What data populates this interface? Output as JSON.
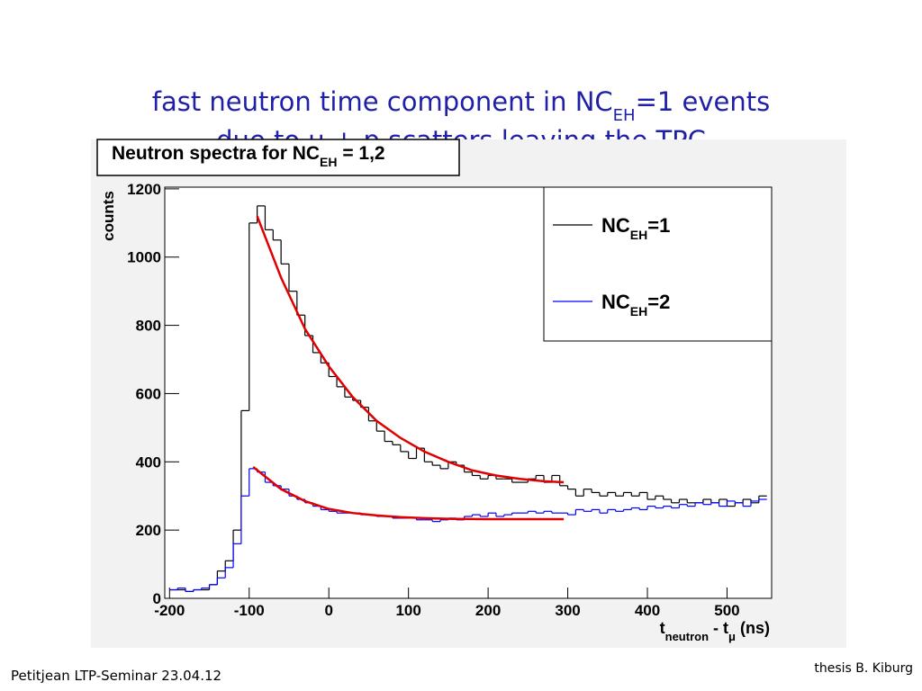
{
  "slide": {
    "headline": [
      "fast neutron time component in NC",
      "EH",
      "=1 events"
    ],
    "subline": "due to μ + p scatters leaving the TPC",
    "footer": "Petitjean LTP-Seminar 23.04.12",
    "credit": "thesis B. Kiburg"
  },
  "chart_data": {
    "type": "histogram",
    "title": [
      "Neutron spectra for NC",
      "EH",
      " = 1,2"
    ],
    "ylabel": "counts",
    "xlabel": [
      "t",
      "neutron",
      " - t",
      "μ",
      " (ns)"
    ],
    "bins": [
      -200,
      -190,
      -180,
      -170,
      -160,
      -150,
      -140,
      -130,
      -120,
      -110,
      -100,
      -90,
      -80,
      -70,
      -60,
      -50,
      -40,
      -30,
      -20,
      -10,
      0,
      10,
      20,
      30,
      40,
      50,
      60,
      70,
      80,
      90,
      100,
      110,
      120,
      130,
      140,
      150,
      160,
      170,
      180,
      190,
      200,
      210,
      220,
      230,
      240,
      250,
      260,
      270,
      280,
      290,
      300,
      310,
      320,
      330,
      340,
      350,
      360,
      370,
      380,
      390,
      400,
      410,
      420,
      430,
      440,
      450,
      460,
      470,
      480,
      490,
      500,
      510,
      520,
      530,
      540,
      550
    ],
    "series": [
      {
        "name": [
          "NC",
          "EH",
          "=1"
        ],
        "color": "#000000",
        "values": [
          25,
          25,
          20,
          25,
          25,
          40,
          80,
          110,
          200,
          550,
          1100,
          1150,
          1080,
          1050,
          980,
          900,
          830,
          770,
          720,
          690,
          650,
          620,
          590,
          580,
          560,
          520,
          490,
          460,
          450,
          430,
          410,
          440,
          400,
          390,
          380,
          400,
          390,
          370,
          360,
          350,
          360,
          350,
          350,
          340,
          340,
          350,
          360,
          340,
          360,
          330,
          320,
          300,
          320,
          310,
          300,
          310,
          300,
          310,
          300,
          310,
          290,
          300,
          290,
          280,
          290,
          280,
          280,
          290,
          280,
          290,
          270,
          280,
          290,
          280,
          300
        ]
      },
      {
        "name": [
          "NC",
          "EH",
          "=2"
        ],
        "color": "#0000ff",
        "values": [
          25,
          30,
          20,
          25,
          30,
          40,
          60,
          90,
          160,
          300,
          380,
          370,
          340,
          330,
          320,
          300,
          290,
          280,
          270,
          260,
          255,
          250,
          250,
          250,
          245,
          245,
          240,
          240,
          235,
          235,
          235,
          230,
          230,
          225,
          230,
          235,
          230,
          240,
          245,
          240,
          250,
          240,
          245,
          250,
          250,
          255,
          250,
          255,
          250,
          250,
          245,
          260,
          255,
          260,
          250,
          260,
          255,
          260,
          265,
          260,
          270,
          265,
          270,
          265,
          275,
          270,
          280,
          275,
          280,
          270,
          285,
          280,
          270,
          285,
          290
        ]
      }
    ],
    "fits": [
      {
        "color": "#e00000",
        "x": [
          -90,
          -60,
          -30,
          0,
          30,
          60,
          90,
          120,
          150,
          180,
          210,
          240,
          270,
          295
        ],
        "values": [
          1120,
          940,
          790,
          680,
          590,
          520,
          470,
          430,
          400,
          375,
          360,
          350,
          343,
          340
        ]
      },
      {
        "color": "#e00000",
        "x": [
          -95,
          -60,
          -30,
          0,
          30,
          60,
          90,
          120,
          150,
          200,
          250,
          295
        ],
        "values": [
          385,
          320,
          285,
          262,
          250,
          243,
          238,
          235,
          233,
          232,
          232,
          232
        ]
      }
    ],
    "xlim": [
      -206,
      556
    ],
    "ylim": [
      0,
      1205
    ],
    "xticks": [
      -200,
      -100,
      0,
      100,
      200,
      300,
      400,
      500
    ],
    "yticks": [
      0,
      200,
      400,
      600,
      800,
      1000,
      1200
    ],
    "legend": "upper right"
  }
}
